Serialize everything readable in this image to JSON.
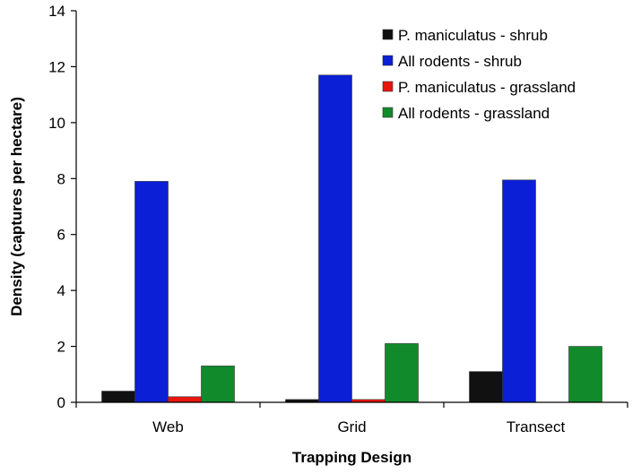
{
  "chart_data": {
    "type": "bar",
    "categories": [
      "Web",
      "Grid",
      "Transect"
    ],
    "series": [
      {
        "name": "P. maniculatus - shrub",
        "values": [
          0.4,
          0.1,
          1.1
        ],
        "color": "#111111"
      },
      {
        "name": "All rodents - shrub",
        "values": [
          7.9,
          11.7,
          7.95
        ],
        "color": "#0a1fd6"
      },
      {
        "name": "P. maniculatus - grassland",
        "values": [
          0.2,
          0.1,
          0
        ],
        "color": "#e8150d"
      },
      {
        "name": "All rodents - grassland",
        "values": [
          1.3,
          2.1,
          2.0
        ],
        "color": "#118a2c"
      }
    ],
    "xlabel": "Trapping Design",
    "ylabel": "Density (captures per hectare)",
    "ylim": [
      0,
      14
    ],
    "yticks": [
      0,
      2,
      4,
      6,
      8,
      10,
      12,
      14
    ],
    "grid": false,
    "legend": "top-right"
  }
}
